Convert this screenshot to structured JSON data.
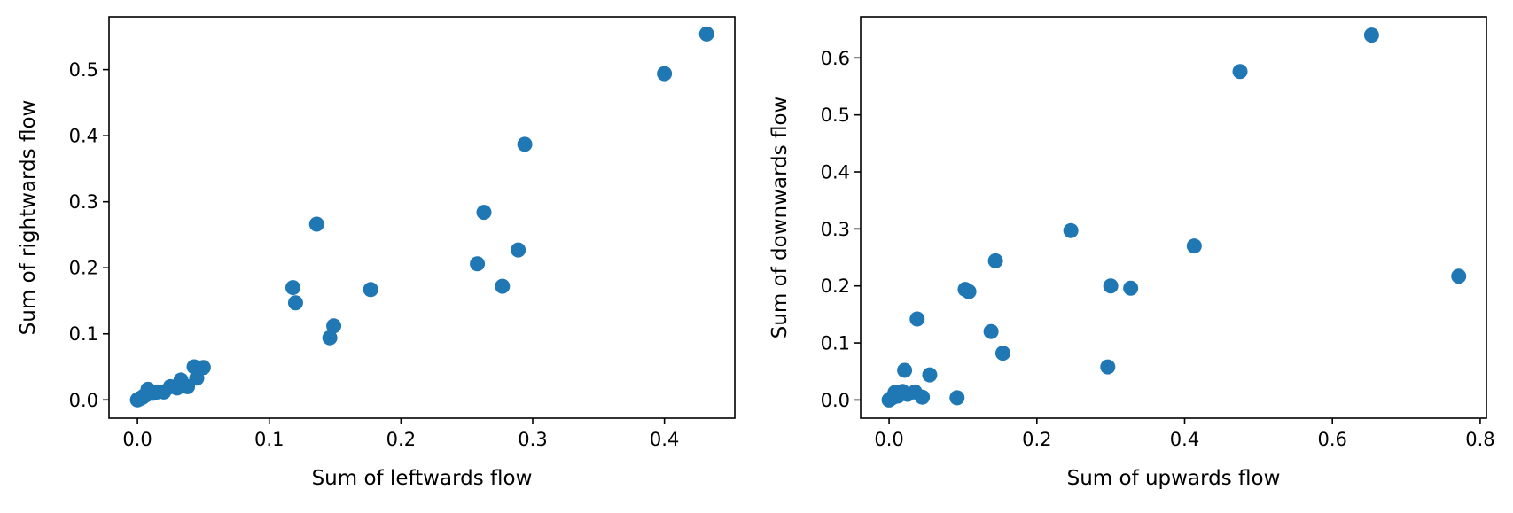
{
  "chart_data": [
    {
      "type": "scatter",
      "xlabel": "Sum of leftwards flow",
      "ylabel": "Sum of rightwards flow",
      "xlim": [
        -0.0216,
        0.4534
      ],
      "ylim": [
        -0.0278,
        0.58
      ],
      "xticks": [
        0.0,
        0.1,
        0.2,
        0.3,
        0.4
      ],
      "yticks": [
        0.0,
        0.1,
        0.2,
        0.3,
        0.4,
        0.5
      ],
      "tick_labels_x": [
        "0.0",
        "0.1",
        "0.2",
        "0.3",
        "0.4"
      ],
      "tick_labels_y": [
        "0.0",
        "0.1",
        "0.2",
        "0.3",
        "0.4",
        "0.5"
      ],
      "marker_color": "#1f77b4",
      "grid": false,
      "points": [
        [
          0.0,
          0.0
        ],
        [
          0.001,
          0.001
        ],
        [
          0.002,
          0.002
        ],
        [
          0.003,
          0.003
        ],
        [
          0.004,
          0.004
        ],
        [
          0.005,
          0.006
        ],
        [
          0.006,
          0.007
        ],
        [
          0.007,
          0.008
        ],
        [
          0.008,
          0.016
        ],
        [
          0.01,
          0.011
        ],
        [
          0.012,
          0.01
        ],
        [
          0.015,
          0.012
        ],
        [
          0.02,
          0.012
        ],
        [
          0.025,
          0.02
        ],
        [
          0.03,
          0.018
        ],
        [
          0.033,
          0.03
        ],
        [
          0.038,
          0.02
        ],
        [
          0.043,
          0.05
        ],
        [
          0.045,
          0.033
        ],
        [
          0.05,
          0.049
        ],
        [
          0.118,
          0.17
        ],
        [
          0.12,
          0.147
        ],
        [
          0.136,
          0.266
        ],
        [
          0.146,
          0.094
        ],
        [
          0.149,
          0.112
        ],
        [
          0.177,
          0.167
        ],
        [
          0.258,
          0.206
        ],
        [
          0.263,
          0.284
        ],
        [
          0.277,
          0.172
        ],
        [
          0.289,
          0.227
        ],
        [
          0.294,
          0.387
        ],
        [
          0.4,
          0.494
        ],
        [
          0.432,
          0.554
        ]
      ]
    },
    {
      "type": "scatter",
      "xlabel": "Sum of upwards flow",
      "ylabel": "Sum of downwards flow",
      "xlim": [
        -0.0385,
        0.8085
      ],
      "ylim": [
        -0.032,
        0.672
      ],
      "xticks": [
        0.0,
        0.2,
        0.4,
        0.6,
        0.8
      ],
      "yticks": [
        0.0,
        0.1,
        0.2,
        0.3,
        0.4,
        0.5,
        0.6
      ],
      "tick_labels_x": [
        "0.0",
        "0.2",
        "0.4",
        "0.6",
        "0.8"
      ],
      "tick_labels_y": [
        "0.0",
        "0.1",
        "0.2",
        "0.3",
        "0.4",
        "0.5",
        "0.6"
      ],
      "marker_color": "#1f77b4",
      "grid": false,
      "points": [
        [
          0.0,
          0.0
        ],
        [
          0.003,
          0.003
        ],
        [
          0.006,
          0.005
        ],
        [
          0.008,
          0.013
        ],
        [
          0.012,
          0.007
        ],
        [
          0.015,
          0.01
        ],
        [
          0.018,
          0.015
        ],
        [
          0.021,
          0.052
        ],
        [
          0.025,
          0.01
        ],
        [
          0.035,
          0.014
        ],
        [
          0.038,
          0.142
        ],
        [
          0.045,
          0.005
        ],
        [
          0.055,
          0.044
        ],
        [
          0.092,
          0.004
        ],
        [
          0.103,
          0.194
        ],
        [
          0.108,
          0.19
        ],
        [
          0.138,
          0.12
        ],
        [
          0.144,
          0.244
        ],
        [
          0.154,
          0.082
        ],
        [
          0.246,
          0.297
        ],
        [
          0.296,
          0.058
        ],
        [
          0.3,
          0.2
        ],
        [
          0.327,
          0.196
        ],
        [
          0.413,
          0.27
        ],
        [
          0.475,
          0.576
        ],
        [
          0.653,
          0.64
        ],
        [
          0.771,
          0.217
        ]
      ]
    }
  ]
}
